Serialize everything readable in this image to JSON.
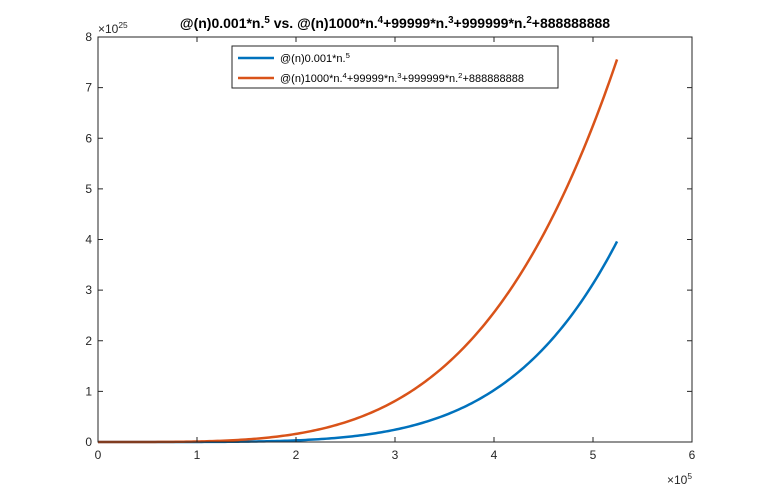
{
  "chart_data": {
    "type": "line",
    "title": {
      "parts": [
        {
          "t": "@(n)0.001*n.",
          "sup": false
        },
        {
          "t": "5",
          "sup": true
        },
        {
          "t": " vs. @(n)1000*n.",
          "sup": false
        },
        {
          "t": "4",
          "sup": true
        },
        {
          "t": "+99999*n.",
          "sup": false
        },
        {
          "t": "3",
          "sup": true
        },
        {
          "t": "+999999*n.",
          "sup": false
        },
        {
          "t": "2",
          "sup": true
        },
        {
          "t": "+888888888",
          "sup": false
        }
      ]
    },
    "xlim": [
      0,
      6
    ],
    "ylim": [
      0,
      8
    ],
    "x_ticks": [
      "0",
      "1",
      "2",
      "3",
      "4",
      "5",
      "6"
    ],
    "y_ticks": [
      "0",
      "1",
      "2",
      "3",
      "4",
      "5",
      "6",
      "7",
      "8"
    ],
    "x_exponent": {
      "base": "×10",
      "power": "5"
    },
    "y_exponent": {
      "base": "×10",
      "power": "25"
    },
    "x_scale": 100000,
    "y_scale": 1e+25,
    "legend_position": "top-center",
    "series": [
      {
        "name_parts": [
          {
            "t": "@(n)0.001*n.",
            "sup": false
          },
          {
            "t": "5",
            "sup": true
          }
        ],
        "formula": "0.001*n^5",
        "color": "#0072BD",
        "x_range": [
          0,
          524288
        ]
      },
      {
        "name_parts": [
          {
            "t": "@(n)1000*n.",
            "sup": false
          },
          {
            "t": "4",
            "sup": true
          },
          {
            "t": "+99999*n.",
            "sup": false
          },
          {
            "t": "3",
            "sup": true
          },
          {
            "t": "+999999*n.",
            "sup": false
          },
          {
            "t": "2",
            "sup": true
          },
          {
            "t": "+888888888",
            "sup": false
          }
        ],
        "formula": "1000*n^4+99999*n^3+999999*n^2+888888888",
        "color": "#D95319",
        "x_range": [
          0,
          524288
        ]
      }
    ]
  }
}
